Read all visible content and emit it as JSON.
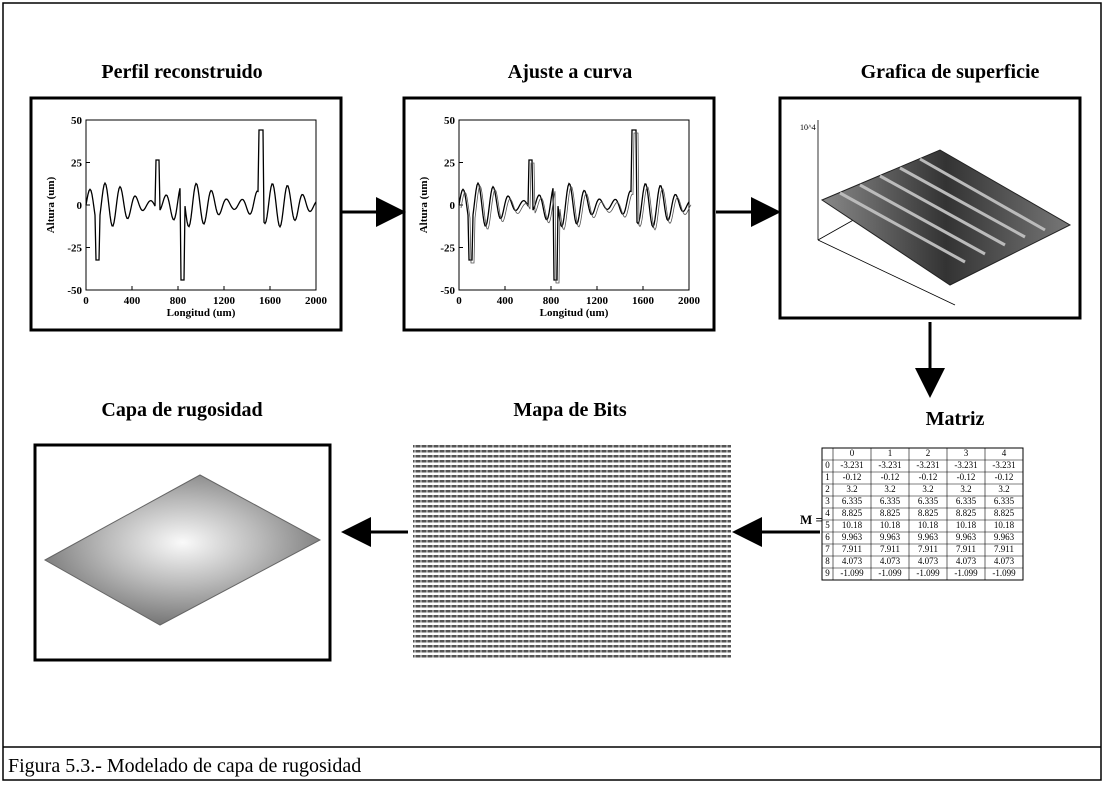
{
  "panels": [
    {
      "title": "Perfil reconstruido",
      "y_label": "Altura (um)",
      "x_label": "Longitud (um)",
      "yticks": [
        50,
        25,
        0,
        -25,
        -50
      ],
      "xticks": [
        0,
        400,
        800,
        1200,
        1600,
        2000
      ]
    },
    {
      "title": "Ajuste a curva",
      "y_label": "Altura (um)",
      "x_label": "Longitud (um)",
      "yticks": [
        50,
        25,
        0,
        -25,
        -50
      ],
      "xticks": [
        0,
        400,
        800,
        1200,
        1600,
        2000
      ]
    },
    {
      "title": "Grafica de superficie"
    }
  ],
  "matrix": {
    "title": "Matriz",
    "lhs": "M =",
    "columns": [
      0,
      1,
      2,
      3,
      4
    ],
    "rows": [
      {
        "index": 0,
        "values": [
          -3.231,
          -3.231,
          -3.231,
          -3.231,
          -3.231
        ]
      },
      {
        "index": 1,
        "values": [
          -0.12,
          -0.12,
          -0.12,
          -0.12,
          -0.12
        ]
      },
      {
        "index": 2,
        "values": [
          3.2,
          3.2,
          3.2,
          3.2,
          3.2
        ]
      },
      {
        "index": 3,
        "values": [
          6.335,
          6.335,
          6.335,
          6.335,
          6.335
        ]
      },
      {
        "index": 4,
        "values": [
          8.825,
          8.825,
          8.825,
          8.825,
          8.825
        ]
      },
      {
        "index": 5,
        "values": [
          10.18,
          10.18,
          10.18,
          10.18,
          10.18
        ]
      },
      {
        "index": 6,
        "values": [
          9.963,
          9.963,
          9.963,
          9.963,
          9.963
        ]
      },
      {
        "index": 7,
        "values": [
          7.911,
          7.911,
          7.911,
          7.911,
          7.911
        ]
      },
      {
        "index": 8,
        "values": [
          4.073,
          4.073,
          4.073,
          4.073,
          4.073
        ]
      },
      {
        "index": 9,
        "values": [
          -1.099,
          -1.099,
          -1.099,
          -1.099,
          -1.099
        ]
      }
    ]
  },
  "bitmap": {
    "title": "Mapa de Bits"
  },
  "roughness": {
    "title": "Capa de rugosidad"
  },
  "caption": "Figura 5.3.-  Modelado de capa de rugosidad"
}
